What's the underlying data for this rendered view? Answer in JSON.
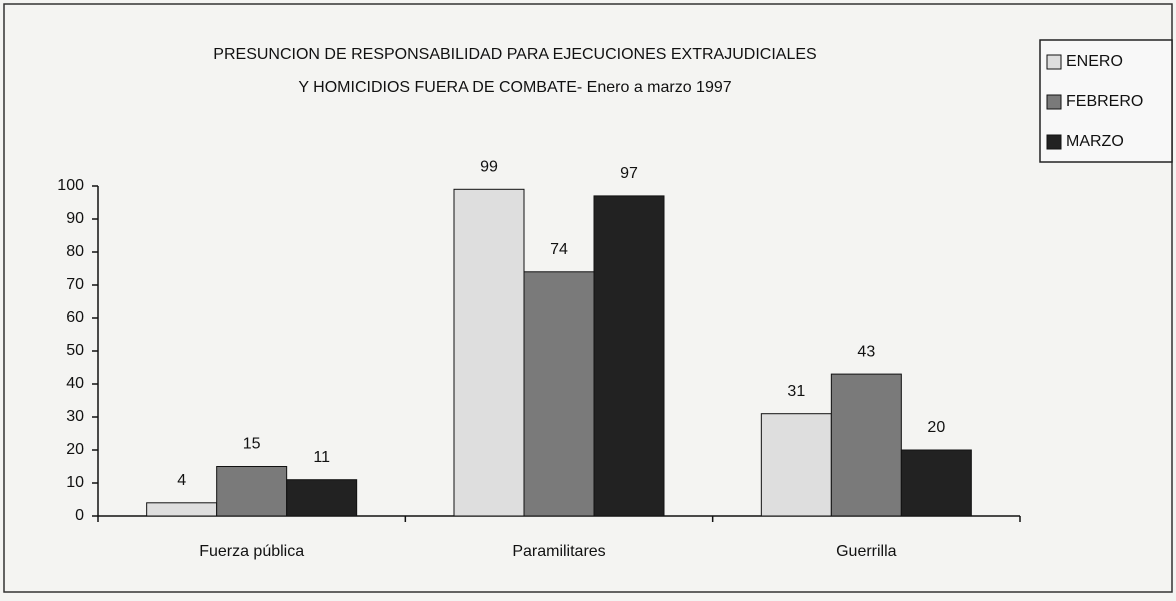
{
  "chart_data": {
    "type": "bar",
    "title": [
      "PRESUNCION DE RESPONSABILIDAD PARA EJECUCIONES EXTRAJUDICIALES",
      "Y HOMICIDIOS FUERA DE COMBATE-  Enero a marzo  1997"
    ],
    "categories": [
      "Fuerza pública",
      "Paramilitares",
      "Guerrilla"
    ],
    "series": [
      {
        "name": "ENERO",
        "color": "#dedede",
        "values": [
          4,
          99,
          31
        ]
      },
      {
        "name": "FEBRERO",
        "color": "#7a7a7a",
        "values": [
          15,
          74,
          43
        ]
      },
      {
        "name": "MARZO",
        "color": "#222222",
        "values": [
          11,
          97,
          20
        ]
      }
    ],
    "ylim": [
      0,
      100
    ],
    "yticks": [
      0,
      10,
      20,
      30,
      40,
      50,
      60,
      70,
      80,
      90,
      100
    ],
    "legend": "right"
  }
}
